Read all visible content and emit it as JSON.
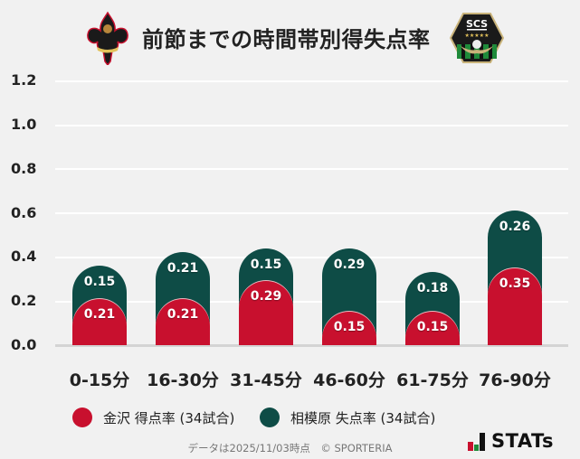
{
  "header": {
    "title": "前節までの時間帯別得失点率",
    "logo_left": "kanazawa-crest-icon",
    "logo_right": "scs-sagamihara-crest-icon"
  },
  "colors": {
    "home": "#c8102e",
    "away": "#0e4c46",
    "background": "#f1f1f1"
  },
  "chart_data": {
    "type": "bar",
    "stacked": true,
    "title": "前節までの時間帯別得失点率",
    "xlabel": "",
    "ylabel": "",
    "ylim": [
      0,
      1.2
    ],
    "yticks": [
      "1.2",
      "1.0",
      "0.8",
      "0.6",
      "0.4",
      "0.2",
      "0.0"
    ],
    "grid": true,
    "legend_position": "bottom",
    "categories": [
      "0-15分",
      "16-30分",
      "31-45分",
      "46-60分",
      "61-75分",
      "76-90分"
    ],
    "series": [
      {
        "name": "金沢 得点率 (34試合)",
        "color": "#c8102e",
        "values": [
          0.21,
          0.21,
          0.29,
          0.15,
          0.15,
          0.35
        ]
      },
      {
        "name": "相模原 失点率 (34試合)",
        "color": "#0e4c46",
        "values": [
          0.15,
          0.21,
          0.15,
          0.29,
          0.18,
          0.26
        ]
      }
    ]
  },
  "value_labels": {
    "home": [
      "0.21",
      "0.21",
      "0.29",
      "0.15",
      "0.15",
      "0.35"
    ],
    "away": [
      "0.15",
      "0.21",
      "0.15",
      "0.29",
      "0.18",
      "0.26"
    ]
  },
  "legend": {
    "home": "金沢 得点率 (34試合)",
    "away": "相模原 失点率 (34試合)"
  },
  "footer": {
    "note": "データは2025/11/03時点　© SPORTERIA",
    "brand": "STATs"
  }
}
